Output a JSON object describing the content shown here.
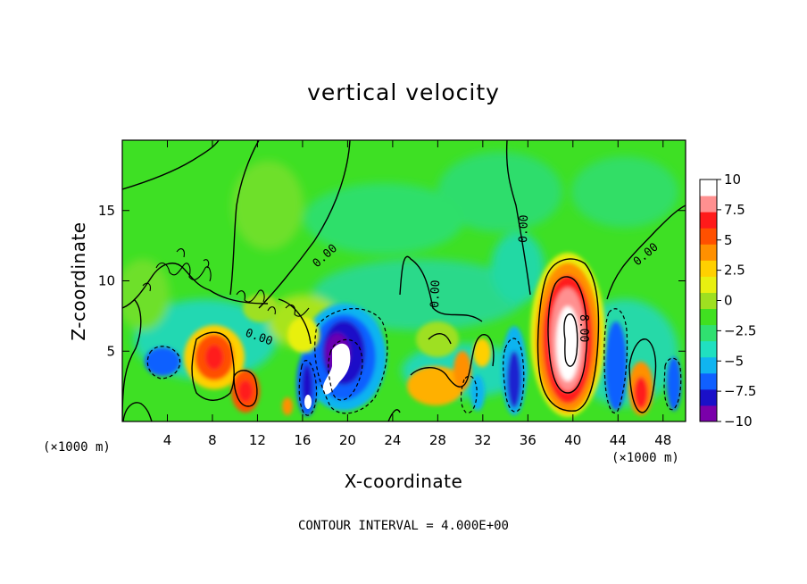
{
  "chart_data": {
    "type": "heatmap",
    "title": "vertical velocity",
    "xlabel": "X-coordinate",
    "ylabel": "Z-coordinate",
    "x_unit": "(×1000 m)",
    "z_unit": "(×1000 m)",
    "xlim": [
      0,
      50
    ],
    "ylim": [
      0,
      20
    ],
    "x_ticks": [
      4,
      8,
      12,
      16,
      20,
      24,
      28,
      32,
      36,
      40,
      44,
      48
    ],
    "y_ticks": [
      5,
      10,
      15
    ],
    "colorbar": {
      "range": [
        -10,
        10
      ],
      "ticks": [
        "10",
        "7.5",
        "5",
        "2.5",
        "0",
        "−2.5",
        "−5",
        "−7.5",
        "−10"
      ],
      "colors": [
        "#7a00aa",
        "#1a10c8",
        "#1060ff",
        "#10b4f0",
        "#20e0c0",
        "#30e070",
        "#40e020",
        "#9ee020",
        "#e8f010",
        "#ffd000",
        "#ff9000",
        "#ff5000",
        "#ff1a1a",
        "#ff9090",
        "#ffffff"
      ]
    },
    "contour_labels": [
      "0.00",
      "0.00",
      "0.00",
      "0.00",
      "0.00",
      "8.00"
    ],
    "footer": "CONTOUR INTERVAL = 4.000E+00",
    "features": [
      {
        "x": 39.5,
        "z": 6.5,
        "w": 22,
        "kind": "updraft"
      },
      {
        "x": 9.2,
        "z": 4.5,
        "w": 9,
        "kind": "updraft"
      },
      {
        "x": 11,
        "z": 2.2,
        "w": 8,
        "kind": "updraft"
      },
      {
        "x": 46,
        "z": 2.5,
        "w": 8,
        "kind": "updraft"
      },
      {
        "x": 19,
        "z": 4,
        "w": -14,
        "kind": "downdraft"
      },
      {
        "x": 16.8,
        "z": 2.3,
        "w": -9,
        "kind": "downdraft"
      },
      {
        "x": 35,
        "z": 3,
        "w": -8,
        "kind": "downdraft"
      },
      {
        "x": 4,
        "z": 4.2,
        "w": -6,
        "kind": "downdraft"
      },
      {
        "x": 44,
        "z": 4,
        "w": -6,
        "kind": "downdraft"
      }
    ]
  }
}
